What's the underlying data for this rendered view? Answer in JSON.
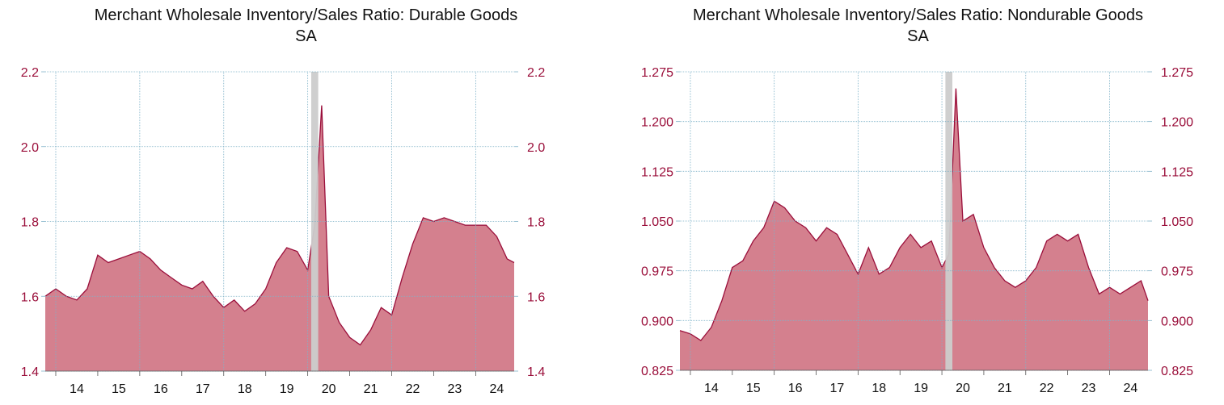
{
  "charts": [
    {
      "title": "Merchant Wholesale Inventory/Sales Ratio: Durable Goods",
      "subtitle": "SA",
      "y_tick_labels": [
        "1.4",
        "1.6",
        "1.8",
        "2.0",
        "2.2"
      ],
      "x_tick_labels": [
        "14",
        "15",
        "16",
        "17",
        "18",
        "19",
        "20",
        "21",
        "22",
        "23",
        "24"
      ]
    },
    {
      "title": "Merchant Wholesale Inventory/Sales Ratio: Nondurable Goods",
      "subtitle": "SA",
      "y_tick_labels": [
        "0.825",
        "0.900",
        "0.975",
        "1.050",
        "1.125",
        "1.200",
        "1.275"
      ],
      "x_tick_labels": [
        "14",
        "15",
        "16",
        "17",
        "18",
        "19",
        "20",
        "21",
        "22",
        "23",
        "24"
      ]
    }
  ],
  "colors": {
    "fill": "#d4808e",
    "line": "#9a0e3a",
    "tick_text": "#9a0e3a",
    "grid": "#7fb2c8",
    "recession": "#cccccc"
  },
  "chart_data": [
    {
      "type": "area",
      "title": "Merchant Wholesale Inventory/Sales Ratio: Durable Goods",
      "subtitle": "SA",
      "xlabel": "",
      "ylabel": "",
      "ylim": [
        1.4,
        2.2
      ],
      "xlim": [
        "2013-10",
        "2024-12"
      ],
      "yticks": [
        1.4,
        1.6,
        1.8,
        2.0,
        2.2
      ],
      "grid": true,
      "recession_shading": [
        "2020-02",
        "2020-04"
      ],
      "x": [
        "2013-10",
        "2014-01",
        "2014-04",
        "2014-07",
        "2014-10",
        "2015-01",
        "2015-04",
        "2015-07",
        "2015-10",
        "2016-01",
        "2016-04",
        "2016-07",
        "2016-10",
        "2017-01",
        "2017-04",
        "2017-07",
        "2017-10",
        "2018-01",
        "2018-04",
        "2018-07",
        "2018-10",
        "2019-01",
        "2019-04",
        "2019-07",
        "2019-10",
        "2020-01",
        "2020-03",
        "2020-05",
        "2020-07",
        "2020-10",
        "2021-01",
        "2021-04",
        "2021-07",
        "2021-10",
        "2022-01",
        "2022-04",
        "2022-07",
        "2022-10",
        "2023-01",
        "2023-04",
        "2023-07",
        "2023-10",
        "2024-01",
        "2024-04",
        "2024-07",
        "2024-10",
        "2024-12"
      ],
      "values": [
        1.6,
        1.62,
        1.6,
        1.59,
        1.62,
        1.71,
        1.69,
        1.7,
        1.71,
        1.72,
        1.7,
        1.67,
        1.65,
        1.63,
        1.62,
        1.64,
        1.6,
        1.57,
        1.59,
        1.56,
        1.58,
        1.62,
        1.69,
        1.73,
        1.72,
        1.67,
        1.79,
        2.11,
        1.6,
        1.53,
        1.49,
        1.47,
        1.51,
        1.57,
        1.55,
        1.65,
        1.74,
        1.81,
        1.8,
        1.81,
        1.8,
        1.79,
        1.79,
        1.79,
        1.76,
        1.7,
        1.69
      ]
    },
    {
      "type": "area",
      "title": "Merchant Wholesale Inventory/Sales Ratio: Nondurable Goods",
      "subtitle": "SA",
      "xlabel": "",
      "ylabel": "",
      "ylim": [
        0.825,
        1.275
      ],
      "xlim": [
        "2013-10",
        "2024-12"
      ],
      "yticks": [
        0.825,
        0.9,
        0.975,
        1.05,
        1.125,
        1.2,
        1.275
      ],
      "grid": true,
      "recession_shading": [
        "2020-02",
        "2020-04"
      ],
      "x": [
        "2013-10",
        "2014-01",
        "2014-04",
        "2014-07",
        "2014-10",
        "2015-01",
        "2015-04",
        "2015-07",
        "2015-10",
        "2016-01",
        "2016-04",
        "2016-07",
        "2016-10",
        "2017-01",
        "2017-04",
        "2017-07",
        "2017-10",
        "2018-01",
        "2018-04",
        "2018-07",
        "2018-10",
        "2019-01",
        "2019-04",
        "2019-07",
        "2019-10",
        "2020-01",
        "2020-03",
        "2020-05",
        "2020-07",
        "2020-10",
        "2021-01",
        "2021-04",
        "2021-07",
        "2021-10",
        "2022-01",
        "2022-04",
        "2022-07",
        "2022-10",
        "2023-01",
        "2023-04",
        "2023-07",
        "2023-10",
        "2024-01",
        "2024-04",
        "2024-07",
        "2024-10",
        "2024-12"
      ],
      "values": [
        0.885,
        0.88,
        0.87,
        0.89,
        0.93,
        0.98,
        0.99,
        1.02,
        1.04,
        1.08,
        1.07,
        1.05,
        1.04,
        1.02,
        1.04,
        1.03,
        1.0,
        0.97,
        1.01,
        0.97,
        0.98,
        1.01,
        1.03,
        1.01,
        1.02,
        0.98,
        1.0,
        1.25,
        1.05,
        1.06,
        1.01,
        0.98,
        0.96,
        0.95,
        0.96,
        0.98,
        1.02,
        1.03,
        1.02,
        1.03,
        0.98,
        0.94,
        0.95,
        0.94,
        0.95,
        0.96,
        0.93
      ]
    }
  ]
}
